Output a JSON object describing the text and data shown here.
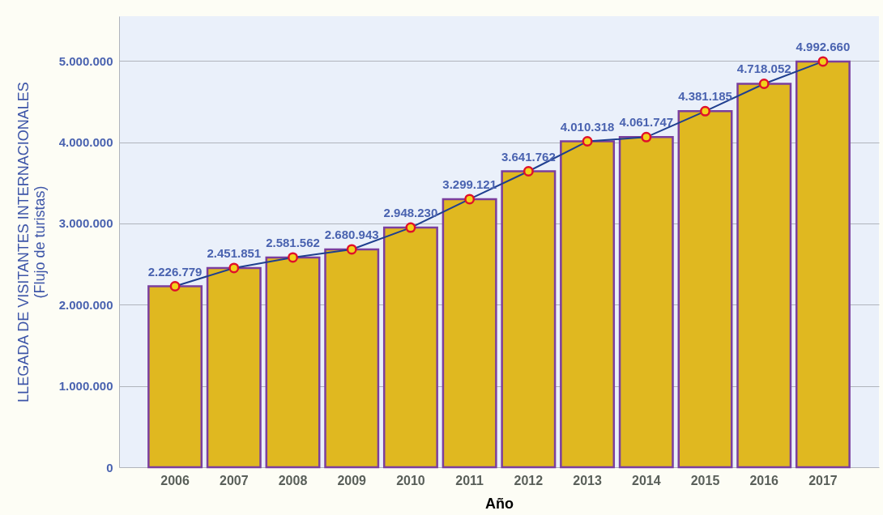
{
  "chart_data": {
    "type": "bar",
    "categories": [
      "2006",
      "2007",
      "2008",
      "2009",
      "2010",
      "2011",
      "2012",
      "2013",
      "2014",
      "2015",
      "2016",
      "2017"
    ],
    "series": [
      {
        "color": "#e0b820",
        "values": [
          2226779,
          2451851,
          2581562,
          2680943,
          2948230,
          3299121,
          3641762,
          4010318,
          4061747,
          4381185,
          4718052,
          4992660
        ]
      },
      {
        "type": "line",
        "color": "#1f3f8f",
        "values": [
          2226779,
          2451851,
          2581562,
          2680943,
          2948230,
          3299121,
          3641762,
          4010318,
          4061747,
          4381185,
          4718052,
          4992660
        ],
        "value_labels": [
          "2.226.779",
          "2.451.851",
          "2.581.562",
          "2.680.943",
          "2.948.230",
          "3.299.121",
          "3.641.762",
          "4.010.318",
          "4.061.747",
          "4.381.185",
          "4.718.052",
          "4.992.660"
        ]
      }
    ],
    "xlabel": "Año",
    "ylabel": "LLEGADA DE VISITANTES INTERNACIONALES\n(Flujo de turistas)",
    "ylim": [
      0,
      5550000
    ],
    "yticks": [
      0,
      {
        "value": 1000000,
        "label": "1.000.000"
      },
      {
        "value": 2000000,
        "label": "2.000.000"
      },
      {
        "value": 3000000,
        "label": "3.000.000"
      },
      {
        "value": 4000000,
        "label": "4.000.000"
      },
      {
        "value": 5000000,
        "label": "5.000.000"
      }
    ],
    "grid": "y",
    "marker": "circle"
  }
}
